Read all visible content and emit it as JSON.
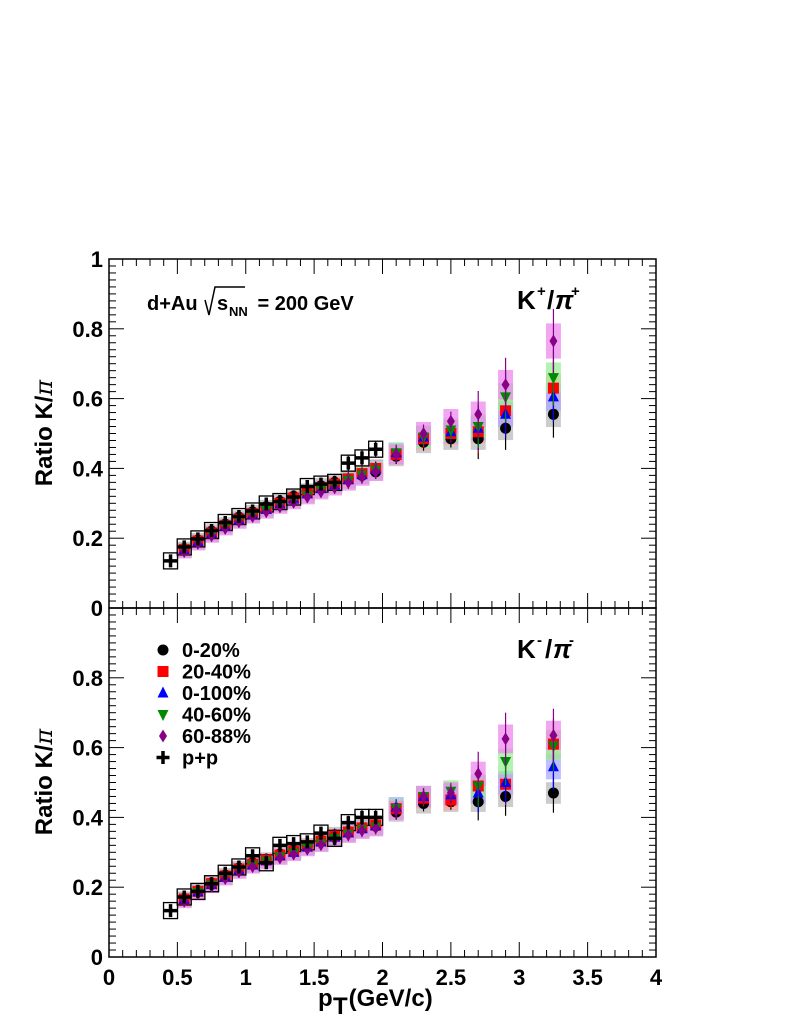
{
  "chart_data": [
    {
      "type": "scatter",
      "panel": "top",
      "ylabel_main": "Ratio K/",
      "ylabel_greek": "π",
      "ylim": [
        0,
        1
      ],
      "xlim": [
        0,
        4
      ],
      "y_ticks": [
        "0",
        "0.2",
        "0.4",
        "0.6",
        "0.8",
        "1"
      ],
      "ratio_label": {
        "particle1": "K",
        "sup1": "+",
        "sep": "/",
        "particle2": "π",
        "sup2": "+"
      },
      "system_label": {
        "prefix": "d+Au",
        "sqrt_s": "s",
        "sub": "NN",
        "suffix": " = 200 GeV"
      },
      "series": [
        {
          "name": "0-20%",
          "marker": "circle",
          "color": "#000000",
          "band": "#bbbbbb",
          "x": [
            0.55,
            0.65,
            0.75,
            0.85,
            0.95,
            1.05,
            1.15,
            1.25,
            1.35,
            1.45,
            1.55,
            1.65,
            1.75,
            1.85,
            1.95,
            2.1,
            2.3,
            2.5,
            2.7,
            2.9,
            3.25
          ],
          "y": [
            0.17,
            0.195,
            0.22,
            0.24,
            0.26,
            0.275,
            0.29,
            0.305,
            0.32,
            0.335,
            0.35,
            0.36,
            0.37,
            0.38,
            0.39,
            0.435,
            0.475,
            0.485,
            0.485,
            0.515,
            0.555
          ]
        },
        {
          "name": "20-40%",
          "marker": "square",
          "color": "#ff0000",
          "band": "#ffaaaa",
          "x": [
            0.55,
            0.65,
            0.75,
            0.85,
            0.95,
            1.05,
            1.15,
            1.25,
            1.35,
            1.45,
            1.55,
            1.65,
            1.75,
            1.85,
            1.95,
            2.1,
            2.3,
            2.5,
            2.7,
            2.9,
            3.25
          ],
          "y": [
            0.168,
            0.192,
            0.215,
            0.236,
            0.255,
            0.27,
            0.285,
            0.3,
            0.315,
            0.33,
            0.345,
            0.355,
            0.37,
            0.385,
            0.4,
            0.44,
            0.485,
            0.5,
            0.505,
            0.565,
            0.63
          ]
        },
        {
          "name": "0-100%",
          "marker": "triangle-up",
          "color": "#0000ff",
          "band": "#aaaaff",
          "x": [
            0.55,
            0.65,
            0.75,
            0.85,
            0.95,
            1.05,
            1.15,
            1.25,
            1.35,
            1.45,
            1.55,
            1.65,
            1.75,
            1.85,
            1.95,
            2.1,
            2.3,
            2.5,
            2.7,
            2.9,
            3.25
          ],
          "y": [
            0.167,
            0.19,
            0.213,
            0.234,
            0.253,
            0.268,
            0.283,
            0.298,
            0.312,
            0.327,
            0.342,
            0.352,
            0.368,
            0.382,
            0.398,
            0.445,
            0.49,
            0.505,
            0.515,
            0.555,
            0.605
          ]
        },
        {
          "name": "40-60%",
          "marker": "triangle-down",
          "color": "#008800",
          "band": "#99ee99",
          "x": [
            0.55,
            0.65,
            0.75,
            0.85,
            0.95,
            1.05,
            1.15,
            1.25,
            1.35,
            1.45,
            1.55,
            1.65,
            1.75,
            1.85,
            1.95,
            2.1,
            2.3,
            2.5,
            2.7,
            2.9,
            3.25
          ],
          "y": [
            0.165,
            0.188,
            0.21,
            0.232,
            0.25,
            0.265,
            0.28,
            0.295,
            0.308,
            0.322,
            0.338,
            0.35,
            0.365,
            0.38,
            0.395,
            0.445,
            0.49,
            0.51,
            0.52,
            0.605,
            0.66
          ]
        },
        {
          "name": "60-88%",
          "marker": "diamond",
          "color": "#880088",
          "band": "#ee88ee",
          "x": [
            0.55,
            0.65,
            0.75,
            0.85,
            0.95,
            1.05,
            1.15,
            1.25,
            1.35,
            1.45,
            1.55,
            1.65,
            1.75,
            1.85,
            1.95,
            2.1,
            2.3,
            2.5,
            2.7,
            2.9,
            3.25
          ],
          "y": [
            0.162,
            0.185,
            0.207,
            0.228,
            0.247,
            0.262,
            0.276,
            0.29,
            0.303,
            0.318,
            0.333,
            0.345,
            0.36,
            0.375,
            0.39,
            0.44,
            0.5,
            0.535,
            0.555,
            0.64,
            0.765
          ]
        },
        {
          "name": "p+p",
          "marker": "cross",
          "color": "#000000",
          "band": null,
          "x": [
            0.45,
            0.55,
            0.65,
            0.75,
            0.85,
            0.95,
            1.05,
            1.15,
            1.25,
            1.35,
            1.45,
            1.55,
            1.65,
            1.75,
            1.85,
            1.95
          ],
          "y": [
            0.135,
            0.175,
            0.198,
            0.222,
            0.245,
            0.262,
            0.278,
            0.298,
            0.305,
            0.318,
            0.348,
            0.355,
            0.36,
            0.415,
            0.43,
            0.455
          ]
        }
      ]
    },
    {
      "type": "scatter",
      "panel": "bottom",
      "ylabel_main": "Ratio K/",
      "ylabel_greek": "π",
      "ylim": [
        0,
        1
      ],
      "xlim": [
        0,
        4
      ],
      "y_ticks": [
        "0",
        "0.2",
        "0.4",
        "0.6",
        "0.8"
      ],
      "x_ticks": [
        "0",
        "0.5",
        "1",
        "1.5",
        "2",
        "2.5",
        "3",
        "3.5",
        "4"
      ],
      "xlabel_main": "p",
      "xlabel_sub": "T",
      "xlabel_unit": " (GeV/c)",
      "ratio_label": {
        "particle1": "K",
        "sup1": "-",
        "sep": "/",
        "particle2": "π",
        "sup2": "-"
      },
      "series": [
        {
          "name": "0-20%",
          "marker": "circle",
          "color": "#000000",
          "band": "#bbbbbb",
          "x": [
            0.55,
            0.65,
            0.75,
            0.85,
            0.95,
            1.05,
            1.15,
            1.25,
            1.35,
            1.45,
            1.55,
            1.65,
            1.75,
            1.85,
            1.95,
            2.1,
            2.3,
            2.5,
            2.7,
            2.9,
            3.25
          ],
          "y": [
            0.168,
            0.19,
            0.212,
            0.235,
            0.255,
            0.27,
            0.28,
            0.295,
            0.305,
            0.32,
            0.335,
            0.35,
            0.36,
            0.37,
            0.375,
            0.415,
            0.44,
            0.445,
            0.445,
            0.46,
            0.47
          ]
        },
        {
          "name": "20-40%",
          "marker": "square",
          "color": "#ff0000",
          "band": "#ffaaaa",
          "x": [
            0.55,
            0.65,
            0.75,
            0.85,
            0.95,
            1.05,
            1.15,
            1.25,
            1.35,
            1.45,
            1.55,
            1.65,
            1.75,
            1.85,
            1.95,
            2.1,
            2.3,
            2.5,
            2.7,
            2.9,
            3.25
          ],
          "y": [
            0.166,
            0.188,
            0.21,
            0.232,
            0.252,
            0.266,
            0.278,
            0.292,
            0.303,
            0.318,
            0.332,
            0.346,
            0.358,
            0.37,
            0.378,
            0.425,
            0.455,
            0.45,
            0.49,
            0.495,
            0.61
          ]
        },
        {
          "name": "0-100%",
          "marker": "triangle-up",
          "color": "#0000ff",
          "band": "#aaaaff",
          "x": [
            0.55,
            0.65,
            0.75,
            0.85,
            0.95,
            1.05,
            1.15,
            1.25,
            1.35,
            1.45,
            1.55,
            1.65,
            1.75,
            1.85,
            1.95,
            2.1,
            2.3,
            2.5,
            2.7,
            2.9,
            3.25
          ],
          "y": [
            0.165,
            0.187,
            0.208,
            0.23,
            0.25,
            0.264,
            0.276,
            0.29,
            0.3,
            0.315,
            0.33,
            0.344,
            0.356,
            0.368,
            0.376,
            0.43,
            0.46,
            0.465,
            0.47,
            0.5,
            0.545
          ]
        },
        {
          "name": "40-60%",
          "marker": "triangle-down",
          "color": "#008800",
          "band": "#99ee99",
          "x": [
            0.55,
            0.65,
            0.75,
            0.85,
            0.95,
            1.05,
            1.15,
            1.25,
            1.35,
            1.45,
            1.55,
            1.65,
            1.75,
            1.85,
            1.95,
            2.1,
            2.3,
            2.5,
            2.7,
            2.9,
            3.25
          ],
          "y": [
            0.163,
            0.185,
            0.206,
            0.228,
            0.247,
            0.262,
            0.274,
            0.287,
            0.298,
            0.312,
            0.325,
            0.34,
            0.352,
            0.365,
            0.372,
            0.425,
            0.46,
            0.475,
            0.49,
            0.56,
            0.605
          ]
        },
        {
          "name": "60-88%",
          "marker": "diamond",
          "color": "#880088",
          "band": "#ee88ee",
          "x": [
            0.55,
            0.65,
            0.75,
            0.85,
            0.95,
            1.05,
            1.15,
            1.25,
            1.35,
            1.45,
            1.55,
            1.65,
            1.75,
            1.85,
            1.95,
            2.1,
            2.3,
            2.5,
            2.7,
            2.9,
            3.25
          ],
          "y": [
            0.16,
            0.182,
            0.203,
            0.225,
            0.244,
            0.259,
            0.271,
            0.284,
            0.295,
            0.309,
            0.322,
            0.337,
            0.35,
            0.362,
            0.37,
            0.42,
            0.46,
            0.47,
            0.525,
            0.625,
            0.635
          ]
        },
        {
          "name": "p+p",
          "marker": "cross",
          "color": "#000000",
          "band": null,
          "x": [
            0.45,
            0.55,
            0.65,
            0.75,
            0.85,
            0.95,
            1.05,
            1.15,
            1.25,
            1.35,
            1.45,
            1.55,
            1.65,
            1.75,
            1.85,
            1.95
          ],
          "y": [
            0.133,
            0.172,
            0.188,
            0.21,
            0.24,
            0.258,
            0.29,
            0.27,
            0.32,
            0.325,
            0.33,
            0.355,
            0.34,
            0.385,
            0.4,
            0.4
          ]
        }
      ]
    }
  ]
}
